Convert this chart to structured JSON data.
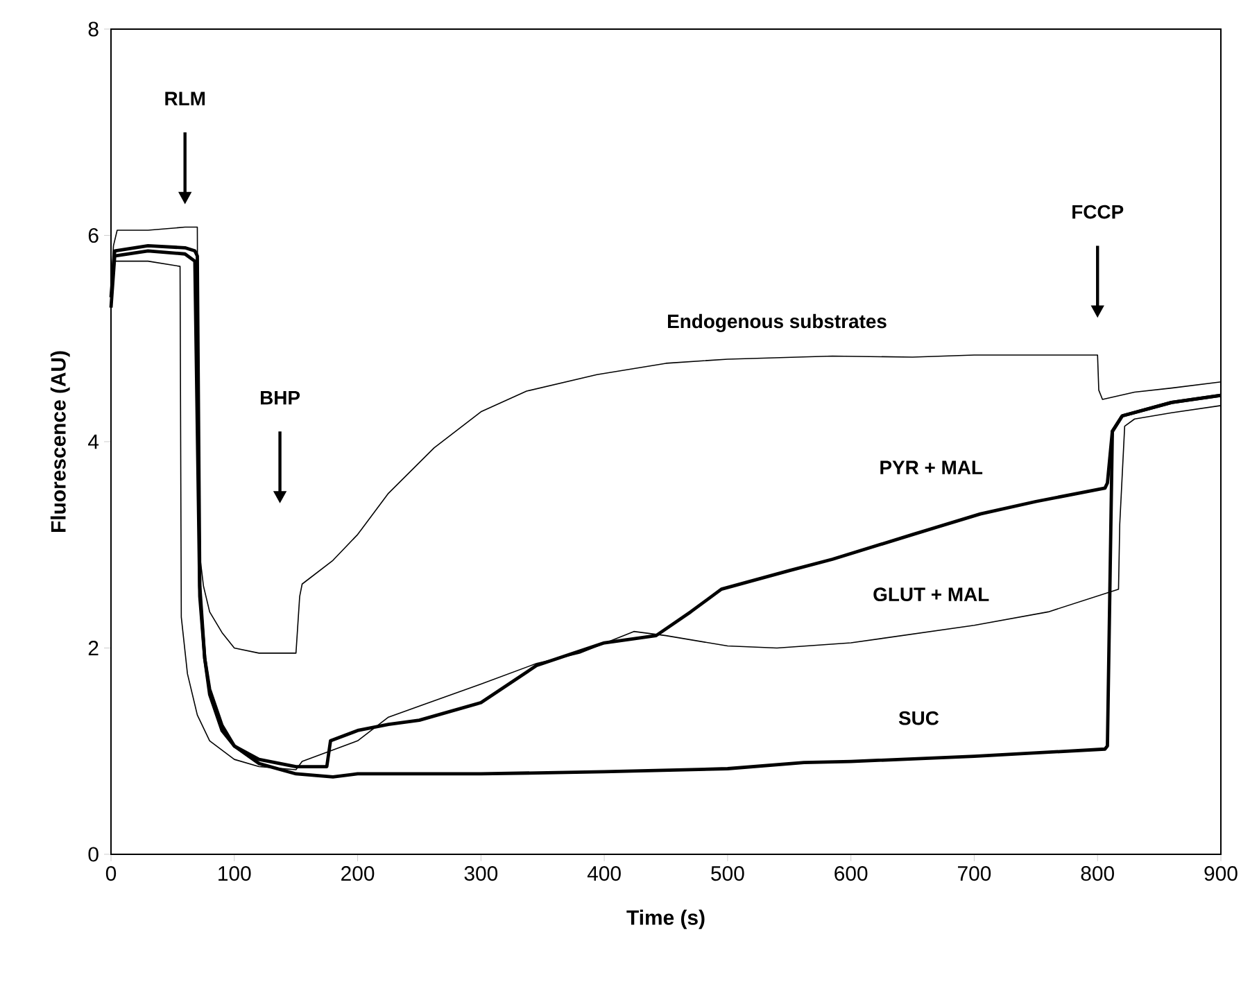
{
  "chart_data": {
    "type": "line",
    "xlabel": "Time (s)",
    "ylabel": "Fluorescence (AU)",
    "xlim": [
      0,
      900
    ],
    "ylim": [
      0,
      8
    ],
    "xticks": [
      0,
      100,
      200,
      300,
      400,
      500,
      600,
      700,
      800,
      900
    ],
    "yticks": [
      0,
      2,
      4,
      6,
      8
    ],
    "grid": false,
    "legend": false,
    "marker": "none",
    "line_style": "solid",
    "annotations": [
      "RLM",
      "BHP",
      "FCCP"
    ],
    "series": [
      {
        "name": "Endogenous substrates",
        "color": "#000000",
        "x": [
          0,
          2,
          5,
          30,
          60,
          70,
          71,
          75,
          80,
          90,
          100,
          120,
          150,
          153,
          155,
          180,
          200,
          225,
          262,
          300,
          337,
          394,
          450,
          500,
          585,
          650,
          700,
          787,
          800,
          801,
          804,
          830,
          860,
          900
        ],
        "values": [
          5.5,
          5.9,
          6.05,
          6.05,
          6.08,
          6.08,
          3.0,
          2.6,
          2.35,
          2.15,
          2.0,
          1.95,
          1.95,
          2.5,
          2.62,
          2.85,
          3.1,
          3.5,
          3.94,
          4.29,
          4.49,
          4.65,
          4.76,
          4.8,
          4.83,
          4.82,
          4.84,
          4.84,
          4.84,
          4.5,
          4.41,
          4.48,
          4.52,
          4.58
        ]
      },
      {
        "name": "PYR + MAL",
        "color": "#000000",
        "x": [
          0,
          3,
          30,
          60,
          68,
          70,
          72,
          76,
          80,
          90,
          100,
          120,
          150,
          175,
          178,
          200,
          225,
          250,
          300,
          345,
          400,
          442,
          470,
          495,
          550,
          585,
          650,
          705,
          750,
          806,
          808,
          812,
          820,
          860,
          900
        ],
        "values": [
          5.4,
          5.85,
          5.9,
          5.88,
          5.85,
          5.8,
          2.6,
          1.9,
          1.55,
          1.2,
          1.05,
          0.92,
          0.85,
          0.85,
          1.1,
          1.2,
          1.26,
          1.3,
          1.47,
          1.83,
          2.05,
          2.12,
          2.35,
          2.57,
          2.75,
          2.86,
          3.1,
          3.3,
          3.42,
          3.55,
          3.6,
          4.1,
          4.25,
          4.38,
          4.45
        ]
      },
      {
        "name": "GLUT + MAL",
        "color": "#000000",
        "x": [
          0,
          3,
          30,
          56,
          57,
          62,
          70,
          80,
          100,
          120,
          150,
          155,
          200,
          225,
          300,
          345,
          380,
          424,
          450,
          500,
          540,
          600,
          700,
          760,
          817,
          818,
          822,
          830,
          860,
          900
        ],
        "values": [
          5.5,
          5.75,
          5.75,
          5.7,
          2.3,
          1.75,
          1.35,
          1.1,
          0.92,
          0.85,
          0.82,
          0.9,
          1.1,
          1.33,
          1.65,
          1.85,
          1.95,
          2.16,
          2.12,
          2.02,
          2.0,
          2.05,
          2.22,
          2.35,
          2.57,
          3.2,
          4.15,
          4.22,
          4.28,
          4.35
        ]
      },
      {
        "name": "SUC",
        "color": "#000000",
        "x": [
          0,
          3,
          30,
          60,
          68,
          72,
          76,
          80,
          90,
          100,
          120,
          150,
          180,
          200,
          300,
          400,
          500,
          562,
          600,
          700,
          806,
          808,
          812,
          820,
          860,
          900
        ],
        "values": [
          5.3,
          5.8,
          5.85,
          5.82,
          5.75,
          2.5,
          1.9,
          1.6,
          1.25,
          1.05,
          0.88,
          0.78,
          0.75,
          0.78,
          0.78,
          0.8,
          0.83,
          0.89,
          0.9,
          0.95,
          1.02,
          1.05,
          4.1,
          4.25,
          4.38,
          4.45
        ]
      }
    ]
  }
}
